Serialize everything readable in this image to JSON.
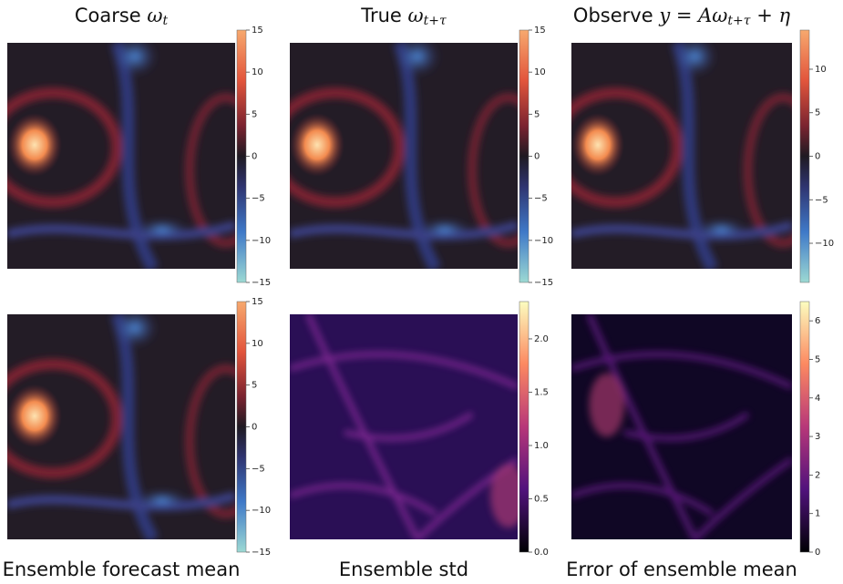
{
  "chart_data": [
    {
      "type": "heatmap",
      "title_parts": [
        {
          "text": "Coarse ",
          "style": "plain"
        },
        {
          "text": "ω",
          "style": "math"
        },
        {
          "text": "t",
          "style": "sub"
        }
      ],
      "colormap": "diverging",
      "clim": [
        -15,
        15
      ],
      "ticks": [
        15,
        10,
        5,
        0,
        {
          "value": -5,
          "label": "−5"
        },
        {
          "value": -10,
          "label": "−10"
        },
        {
          "value": -15,
          "label": "−15"
        }
      ]
    },
    {
      "type": "heatmap",
      "title_parts": [
        {
          "text": "True ",
          "style": "plain"
        },
        {
          "text": "ω",
          "style": "math"
        },
        {
          "text": "t+τ",
          "style": "sub"
        }
      ],
      "colormap": "diverging",
      "clim": [
        -15,
        15
      ],
      "ticks": [
        15,
        10,
        5,
        0,
        {
          "value": -5,
          "label": "−5"
        },
        {
          "value": -10,
          "label": "−10"
        },
        {
          "value": -15,
          "label": "−15"
        }
      ]
    },
    {
      "type": "heatmap",
      "title_parts": [
        {
          "text": "Observe ",
          "style": "plain"
        },
        {
          "text": "y = Aω",
          "style": "math"
        },
        {
          "text": "t+τ",
          "style": "sub"
        },
        {
          "text": " + η",
          "style": "math"
        }
      ],
      "colormap": "diverging",
      "clim": [
        -14.5,
        14.5
      ],
      "ticks": [
        10,
        5,
        0,
        {
          "value": -5,
          "label": "−5"
        },
        {
          "value": -10,
          "label": "−10"
        }
      ]
    },
    {
      "type": "heatmap",
      "title_parts": [
        {
          "text": "Ensemble forecast mean",
          "style": "plain"
        }
      ],
      "colormap": "diverging",
      "clim": [
        -15,
        15
      ],
      "ticks": [
        15,
        10,
        5,
        0,
        {
          "value": -5,
          "label": "−5"
        },
        {
          "value": -10,
          "label": "−10"
        },
        {
          "value": -15,
          "label": "−15"
        }
      ]
    },
    {
      "type": "heatmap",
      "title_parts": [
        {
          "text": "Ensemble std",
          "style": "plain"
        }
      ],
      "colormap": "magma",
      "clim": [
        0,
        2.35
      ],
      "ticks": [
        {
          "value": 0,
          "label": "0.0"
        },
        0.5,
        {
          "value": 1,
          "label": "1.0"
        },
        1.5,
        {
          "value": 2,
          "label": "2.0"
        }
      ]
    },
    {
      "type": "heatmap",
      "title_parts": [
        {
          "text": "Error of ensemble mean",
          "style": "plain"
        }
      ],
      "colormap": "magma",
      "clim": [
        0,
        6.5
      ],
      "ticks": [
        0,
        1,
        2,
        3,
        4,
        5,
        6
      ]
    }
  ]
}
